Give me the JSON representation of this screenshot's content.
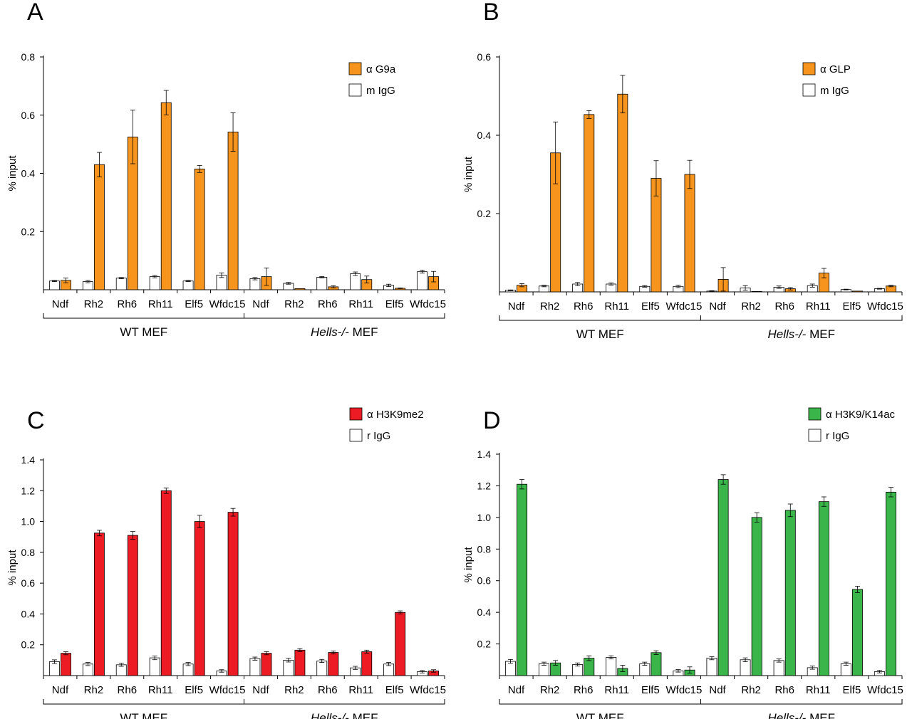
{
  "colors": {
    "orange": "#f7941d",
    "red": "#ed1c24",
    "green": "#3ab54a",
    "control": "#ffffff",
    "axis": "#000000"
  },
  "chart_data": [
    {
      "panel": "A",
      "type": "bar",
      "ylabel": "% input",
      "ylim": [
        0,
        0.8
      ],
      "yticks": [
        0.2,
        0.4,
        0.6,
        0.8
      ],
      "tick_decimals": 1,
      "categories": [
        "Ndf",
        "Rh2",
        "Rh6",
        "Rh11",
        "Elf5",
        "Wfdc15",
        "Ndf",
        "Rh2",
        "Rh6",
        "Rh11",
        "Elf5",
        "Wfdc15"
      ],
      "groups": [
        {
          "label": "WT MEF",
          "italic_part": "",
          "from": 0,
          "to": 5
        },
        {
          "label": " MEF",
          "italic_part": "Hells-/-",
          "from": 6,
          "to": 11
        }
      ],
      "series": [
        {
          "name": "m IgG",
          "prefix": "",
          "color": "#ffffff",
          "values": [
            0.03,
            0.028,
            0.04,
            0.045,
            0.03,
            0.05,
            0.038,
            0.022,
            0.043,
            0.055,
            0.015,
            0.062
          ],
          "errors": [
            0.002,
            0.004,
            0.002,
            0.004,
            0.002,
            0.008,
            0.004,
            0.003,
            0.002,
            0.006,
            0.004,
            0.005
          ]
        },
        {
          "name": "G9a",
          "prefix": "α ",
          "color": "#f7941d",
          "values": [
            0.032,
            0.43,
            0.525,
            0.643,
            0.415,
            0.542,
            0.045,
            0.004,
            0.01,
            0.035,
            0.005,
            0.045
          ],
          "errors": [
            0.008,
            0.042,
            0.092,
            0.042,
            0.012,
            0.066,
            0.03,
            0.0,
            0.004,
            0.012,
            0.001,
            0.018
          ]
        }
      ]
    },
    {
      "panel": "B",
      "type": "bar",
      "ylabel": "% input",
      "ylim": [
        0,
        0.6
      ],
      "yticks": [
        0.2,
        0.4,
        0.6
      ],
      "tick_decimals": 1,
      "categories": [
        "Ndf",
        "Rh2",
        "Rh6",
        "Rh11",
        "Elf5",
        "Wfdc15",
        "Ndf",
        "Rh2",
        "Rh6",
        "Rh11",
        "Elf5",
        "Wfdc15"
      ],
      "groups": [
        {
          "label": "WT MEF",
          "italic_part": "",
          "from": 0,
          "to": 5
        },
        {
          "label": " MEF",
          "italic_part": "Hells-/-",
          "from": 6,
          "to": 11
        }
      ],
      "series": [
        {
          "name": "m IgG",
          "prefix": "",
          "color": "#ffffff",
          "values": [
            0.004,
            0.015,
            0.02,
            0.02,
            0.014,
            0.014,
            0.002,
            0.01,
            0.012,
            0.016,
            0.006,
            0.008
          ],
          "errors": [
            0.001,
            0.002,
            0.004,
            0.003,
            0.002,
            0.003,
            0.001,
            0.006,
            0.003,
            0.004,
            0.001,
            0.001
          ]
        },
        {
          "name": "GLP",
          "prefix": "α ",
          "color": "#f7941d",
          "values": [
            0.017,
            0.355,
            0.453,
            0.505,
            0.29,
            0.3,
            0.032,
            0.0,
            0.008,
            0.048,
            0.002,
            0.015
          ],
          "errors": [
            0.004,
            0.079,
            0.01,
            0.048,
            0.045,
            0.036,
            0.03,
            0.0,
            0.003,
            0.012,
            0.0,
            0.002
          ]
        }
      ]
    },
    {
      "panel": "C",
      "type": "bar",
      "ylabel": "% input",
      "ylim": [
        0,
        1.4
      ],
      "yticks": [
        0.2,
        0.4,
        0.6,
        0.8,
        1.0,
        1.2,
        1.4
      ],
      "tick_decimals": 1,
      "categories": [
        "Ndf",
        "Rh2",
        "Rh6",
        "Rh11",
        "Elf5",
        "Wfdc15",
        "Ndf",
        "Rh2",
        "Rh6",
        "Rh11",
        "Elf5",
        "Wfdc15"
      ],
      "groups": [
        {
          "label": "WT MEF",
          "italic_part": "",
          "from": 0,
          "to": 5
        },
        {
          "label": " MEF",
          "italic_part": "Hells-/-",
          "from": 6,
          "to": 11
        }
      ],
      "series": [
        {
          "name": "r IgG",
          "prefix": "",
          "color": "#ffffff",
          "values": [
            0.09,
            0.075,
            0.07,
            0.115,
            0.075,
            0.03,
            0.11,
            0.1,
            0.095,
            0.05,
            0.075,
            0.025
          ],
          "errors": [
            0.012,
            0.01,
            0.01,
            0.012,
            0.01,
            0.008,
            0.01,
            0.012,
            0.01,
            0.01,
            0.01,
            0.008
          ]
        },
        {
          "name": "H3K9me2",
          "prefix": "α ",
          "color": "#ed1c24",
          "values": [
            0.145,
            0.925,
            0.91,
            1.2,
            1.0,
            1.06,
            0.145,
            0.165,
            0.15,
            0.155,
            0.41,
            0.03
          ],
          "errors": [
            0.01,
            0.018,
            0.025,
            0.018,
            0.04,
            0.025,
            0.01,
            0.01,
            0.01,
            0.01,
            0.01,
            0.008
          ]
        }
      ]
    },
    {
      "panel": "D",
      "type": "bar",
      "ylabel": "% input",
      "ylim": [
        0,
        1.4
      ],
      "yticks": [
        0.2,
        0.4,
        0.6,
        0.8,
        1.0,
        1.2,
        1.4
      ],
      "tick_decimals": 1,
      "categories": [
        "Ndf",
        "Rh2",
        "Rh6",
        "Rh11",
        "Elf5",
        "Wfdc15",
        "Ndf",
        "Rh2",
        "Rh6",
        "Rh11",
        "Elf5",
        "Wfdc15"
      ],
      "groups": [
        {
          "label": "WT MEF",
          "italic_part": "",
          "from": 0,
          "to": 5
        },
        {
          "label": " MEF",
          "italic_part": "Hells-/-",
          "from": 6,
          "to": 11
        }
      ],
      "series": [
        {
          "name": "r IgG",
          "prefix": "",
          "color": "#ffffff",
          "values": [
            0.09,
            0.075,
            0.07,
            0.115,
            0.075,
            0.03,
            0.11,
            0.1,
            0.095,
            0.05,
            0.075,
            0.025
          ],
          "errors": [
            0.012,
            0.01,
            0.01,
            0.01,
            0.01,
            0.008,
            0.01,
            0.012,
            0.01,
            0.01,
            0.01,
            0.008
          ]
        },
        {
          "name": "H3K9/K14ac",
          "prefix": "α ",
          "color": "#3ab54a",
          "values": [
            1.21,
            0.08,
            0.11,
            0.045,
            0.145,
            0.035,
            1.24,
            1.0,
            1.045,
            1.1,
            0.545,
            1.16
          ],
          "errors": [
            0.03,
            0.015,
            0.015,
            0.02,
            0.012,
            0.02,
            0.03,
            0.03,
            0.04,
            0.03,
            0.02,
            0.03
          ]
        }
      ]
    }
  ]
}
